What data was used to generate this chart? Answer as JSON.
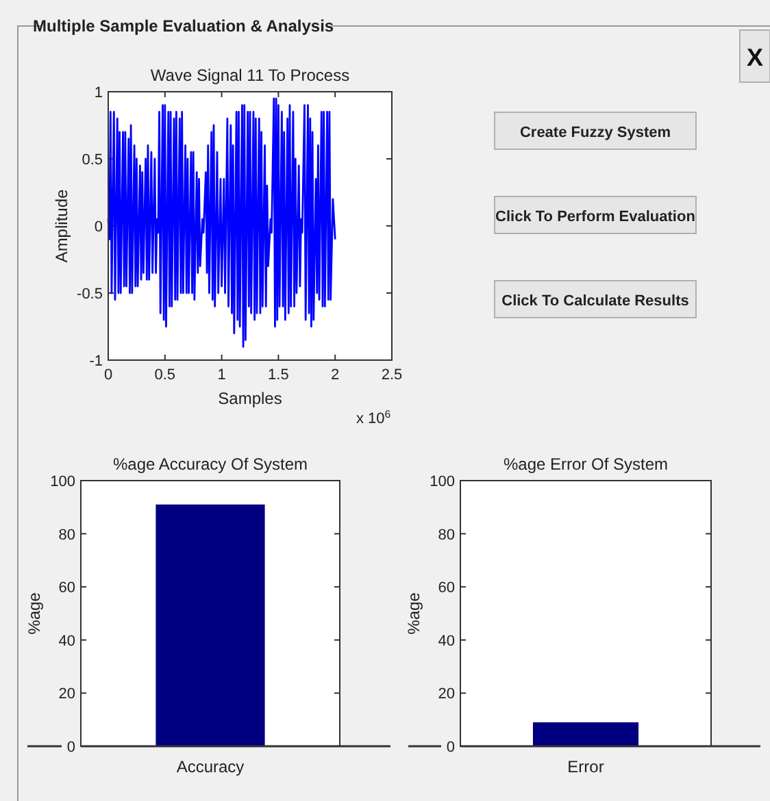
{
  "chart_data": [
    {
      "type": "line",
      "title": "Wave Signal 11 To Process",
      "xlabel": "Samples",
      "ylabel": "Amplitude",
      "color": "#0000ff",
      "xlim": [
        0,
        2.5
      ],
      "xticks": [
        0,
        0.5,
        1,
        1.5,
        2,
        2.5
      ],
      "ylim": [
        -1,
        1
      ],
      "yticks": [
        -1,
        -0.5,
        0,
        0.5,
        1
      ],
      "annotations": [
        "x 10$^{6}$"
      ],
      "x": [
        0,
        0.01,
        0.02,
        0.03,
        0.05,
        0.06,
        0.08,
        0.09,
        0.1,
        0.11,
        0.13,
        0.14,
        0.15,
        0.16,
        0.18,
        0.19,
        0.2,
        0.21,
        0.23,
        0.24,
        0.25,
        0.26,
        0.28,
        0.29,
        0.3,
        0.31,
        0.33,
        0.34,
        0.35,
        0.36,
        0.38,
        0.39,
        0.41,
        0.42,
        0.43,
        0.44,
        0.45,
        0.46,
        0.48,
        0.49,
        0.5,
        0.51,
        0.53,
        0.54,
        0.55,
        0.56,
        0.58,
        0.59,
        0.6,
        0.61,
        0.63,
        0.64,
        0.65,
        0.66,
        0.68,
        0.69,
        0.7,
        0.71,
        0.73,
        0.74,
        0.75,
        0.76,
        0.78,
        0.79,
        0.8,
        0.81,
        0.83,
        0.84,
        0.86,
        0.87,
        0.88,
        0.89,
        0.91,
        0.92,
        0.93,
        0.94,
        0.96,
        0.97,
        0.99,
        1.0,
        1.02,
        1.03,
        1.05,
        1.06,
        1.08,
        1.09,
        1.1,
        1.11,
        1.13,
        1.14,
        1.15,
        1.16,
        1.18,
        1.19,
        1.2,
        1.21,
        1.23,
        1.24,
        1.25,
        1.26,
        1.28,
        1.29,
        1.3,
        1.31,
        1.33,
        1.34,
        1.35,
        1.36,
        1.38,
        1.39,
        1.4,
        1.41,
        1.43,
        1.44,
        1.46,
        1.47,
        1.48,
        1.49,
        1.5,
        1.51,
        1.53,
        1.54,
        1.55,
        1.56,
        1.58,
        1.59,
        1.6,
        1.61,
        1.63,
        1.64,
        1.65,
        1.66,
        1.68,
        1.69,
        1.7,
        1.71,
        1.73,
        1.74,
        1.76,
        1.77,
        1.78,
        1.79,
        1.8,
        1.81,
        1.83,
        1.84,
        1.85,
        1.86,
        1.88,
        1.89,
        1.9,
        1.91,
        1.93,
        1.94,
        1.95,
        1.96,
        1.98,
        2.0
      ],
      "values": [
        0.05,
        -0.1,
        0.85,
        -0.5,
        0.85,
        -0.55,
        0.8,
        -0.5,
        0.7,
        -0.5,
        0.7,
        -0.45,
        0.7,
        -0.45,
        0.65,
        -0.5,
        0.75,
        -0.5,
        0.6,
        -0.45,
        0.5,
        -0.45,
        0.45,
        -0.4,
        0.4,
        -0.35,
        0.5,
        -0.4,
        0.6,
        -0.4,
        0.55,
        -0.35,
        0.5,
        -0.35,
        0.05,
        -0.05,
        0.85,
        -0.65,
        0.9,
        -0.7,
        0.9,
        -0.75,
        0.85,
        -0.6,
        0.85,
        -0.6,
        0.8,
        -0.55,
        0.85,
        -0.55,
        0.8,
        -0.5,
        0.85,
        -0.5,
        0.6,
        -0.5,
        0.5,
        -0.5,
        0.55,
        -0.5,
        0.55,
        -0.55,
        0.4,
        -0.35,
        0.35,
        -0.3,
        0.05,
        -0.05,
        0.4,
        -0.35,
        0.6,
        -0.5,
        0.7,
        -0.55,
        0.75,
        -0.6,
        0.55,
        -0.5,
        0.35,
        -0.45,
        0.35,
        -0.5,
        0.8,
        -0.6,
        0.75,
        -0.65,
        0.6,
        -0.8,
        0.85,
        -0.7,
        0.85,
        -0.75,
        0.9,
        -0.9,
        0.9,
        -0.85,
        0.85,
        -0.6,
        0.85,
        -0.65,
        0.85,
        -0.7,
        0.8,
        -0.65,
        0.8,
        -0.65,
        0.7,
        -0.6,
        0.6,
        -0.6,
        0.3,
        -0.3,
        0.05,
        -0.05,
        0.95,
        -0.75,
        0.95,
        -0.7,
        0.9,
        -0.6,
        0.85,
        -0.6,
        0.7,
        -0.7,
        0.8,
        -0.65,
        0.9,
        -0.6,
        0.85,
        -0.6,
        0.5,
        -0.5,
        0.45,
        -0.45,
        0.05,
        -0.05,
        0.9,
        -0.7,
        0.9,
        -0.65,
        0.8,
        -0.75,
        0.7,
        -0.7,
        0.35,
        -0.5,
        0.6,
        -0.55,
        0.85,
        -0.6,
        0.85,
        -0.6,
        0.85,
        -0.55,
        0.85,
        -0.55,
        0.2,
        -0.1
      ]
    },
    {
      "type": "bar",
      "title": "%age Accuracy  Of System",
      "ylabel": "%age",
      "categories": [
        "Accuracy"
      ],
      "values": [
        91
      ],
      "color": "#000080",
      "ylim": [
        0,
        100
      ],
      "yticks": [
        0,
        20,
        40,
        60,
        80,
        100
      ]
    },
    {
      "type": "bar",
      "title": "%age Error Of System",
      "ylabel": "%age",
      "categories": [
        "Error"
      ],
      "values": [
        9
      ],
      "color": "#000080",
      "ylim": [
        0,
        100
      ],
      "yticks": [
        0,
        20,
        40,
        60,
        80,
        100
      ]
    },
    {
      "type": "other",
      "title": "Multiple Sample Evaluation & Analysis",
      "annotations": [
        "Create Fuzzy System",
        "Click To Perform Evaluation",
        "Click To Calculate Results",
        "X"
      ]
    }
  ]
}
